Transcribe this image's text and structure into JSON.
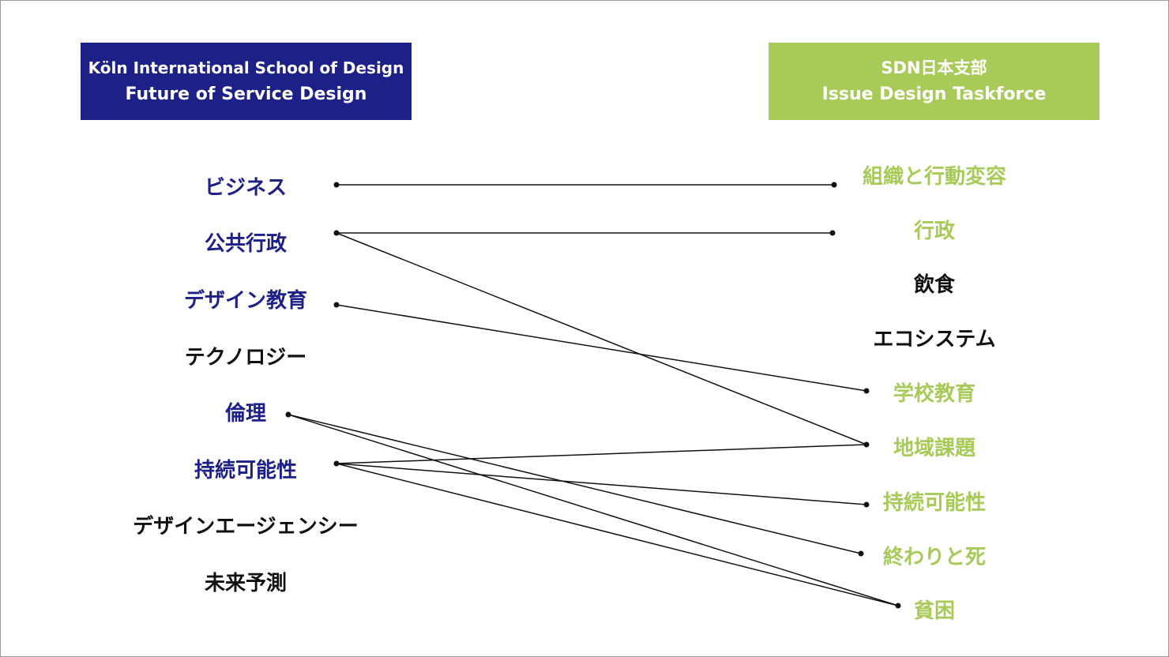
{
  "left_header": {
    "line1": "Köln International School of Design",
    "line2": "Future of Service Design"
  },
  "right_header": {
    "line1": "SDN日本支部",
    "line2": "Issue Design Taskforce"
  },
  "colors": {
    "left_accent": "#1c2087",
    "right_accent": "#a7ca58",
    "neutral_text": "#111111",
    "connector": "#111111"
  },
  "left_items": [
    {
      "label": "ビジネス",
      "highlighted": true
    },
    {
      "label": "公共行政",
      "highlighted": true
    },
    {
      "label": "デザイン教育",
      "highlighted": true
    },
    {
      "label": "テクノロジー",
      "highlighted": false
    },
    {
      "label": "倫理",
      "highlighted": true
    },
    {
      "label": "持続可能性",
      "highlighted": true
    },
    {
      "label": "デザインエージェンシー",
      "highlighted": false
    },
    {
      "label": "未来予測",
      "highlighted": false
    }
  ],
  "right_items": [
    {
      "label": "組織と行動変容",
      "highlighted": true
    },
    {
      "label": "行政",
      "highlighted": true
    },
    {
      "label": "飲食",
      "highlighted": false
    },
    {
      "label": "エコシステム",
      "highlighted": false
    },
    {
      "label": "学校教育",
      "highlighted": true
    },
    {
      "label": "地域課題",
      "highlighted": true
    },
    {
      "label": "持続可能性",
      "highlighted": true
    },
    {
      "label": "終わりと死",
      "highlighted": true
    },
    {
      "label": "貧困",
      "highlighted": true
    }
  ],
  "connections": [
    {
      "from": 0,
      "to": 0
    },
    {
      "from": 1,
      "to": 1
    },
    {
      "from": 1,
      "to": 5
    },
    {
      "from": 2,
      "to": 4
    },
    {
      "from": 4,
      "to": 7
    },
    {
      "from": 4,
      "to": 8
    },
    {
      "from": 5,
      "to": 5
    },
    {
      "from": 5,
      "to": 6
    },
    {
      "from": 5,
      "to": 8
    }
  ]
}
